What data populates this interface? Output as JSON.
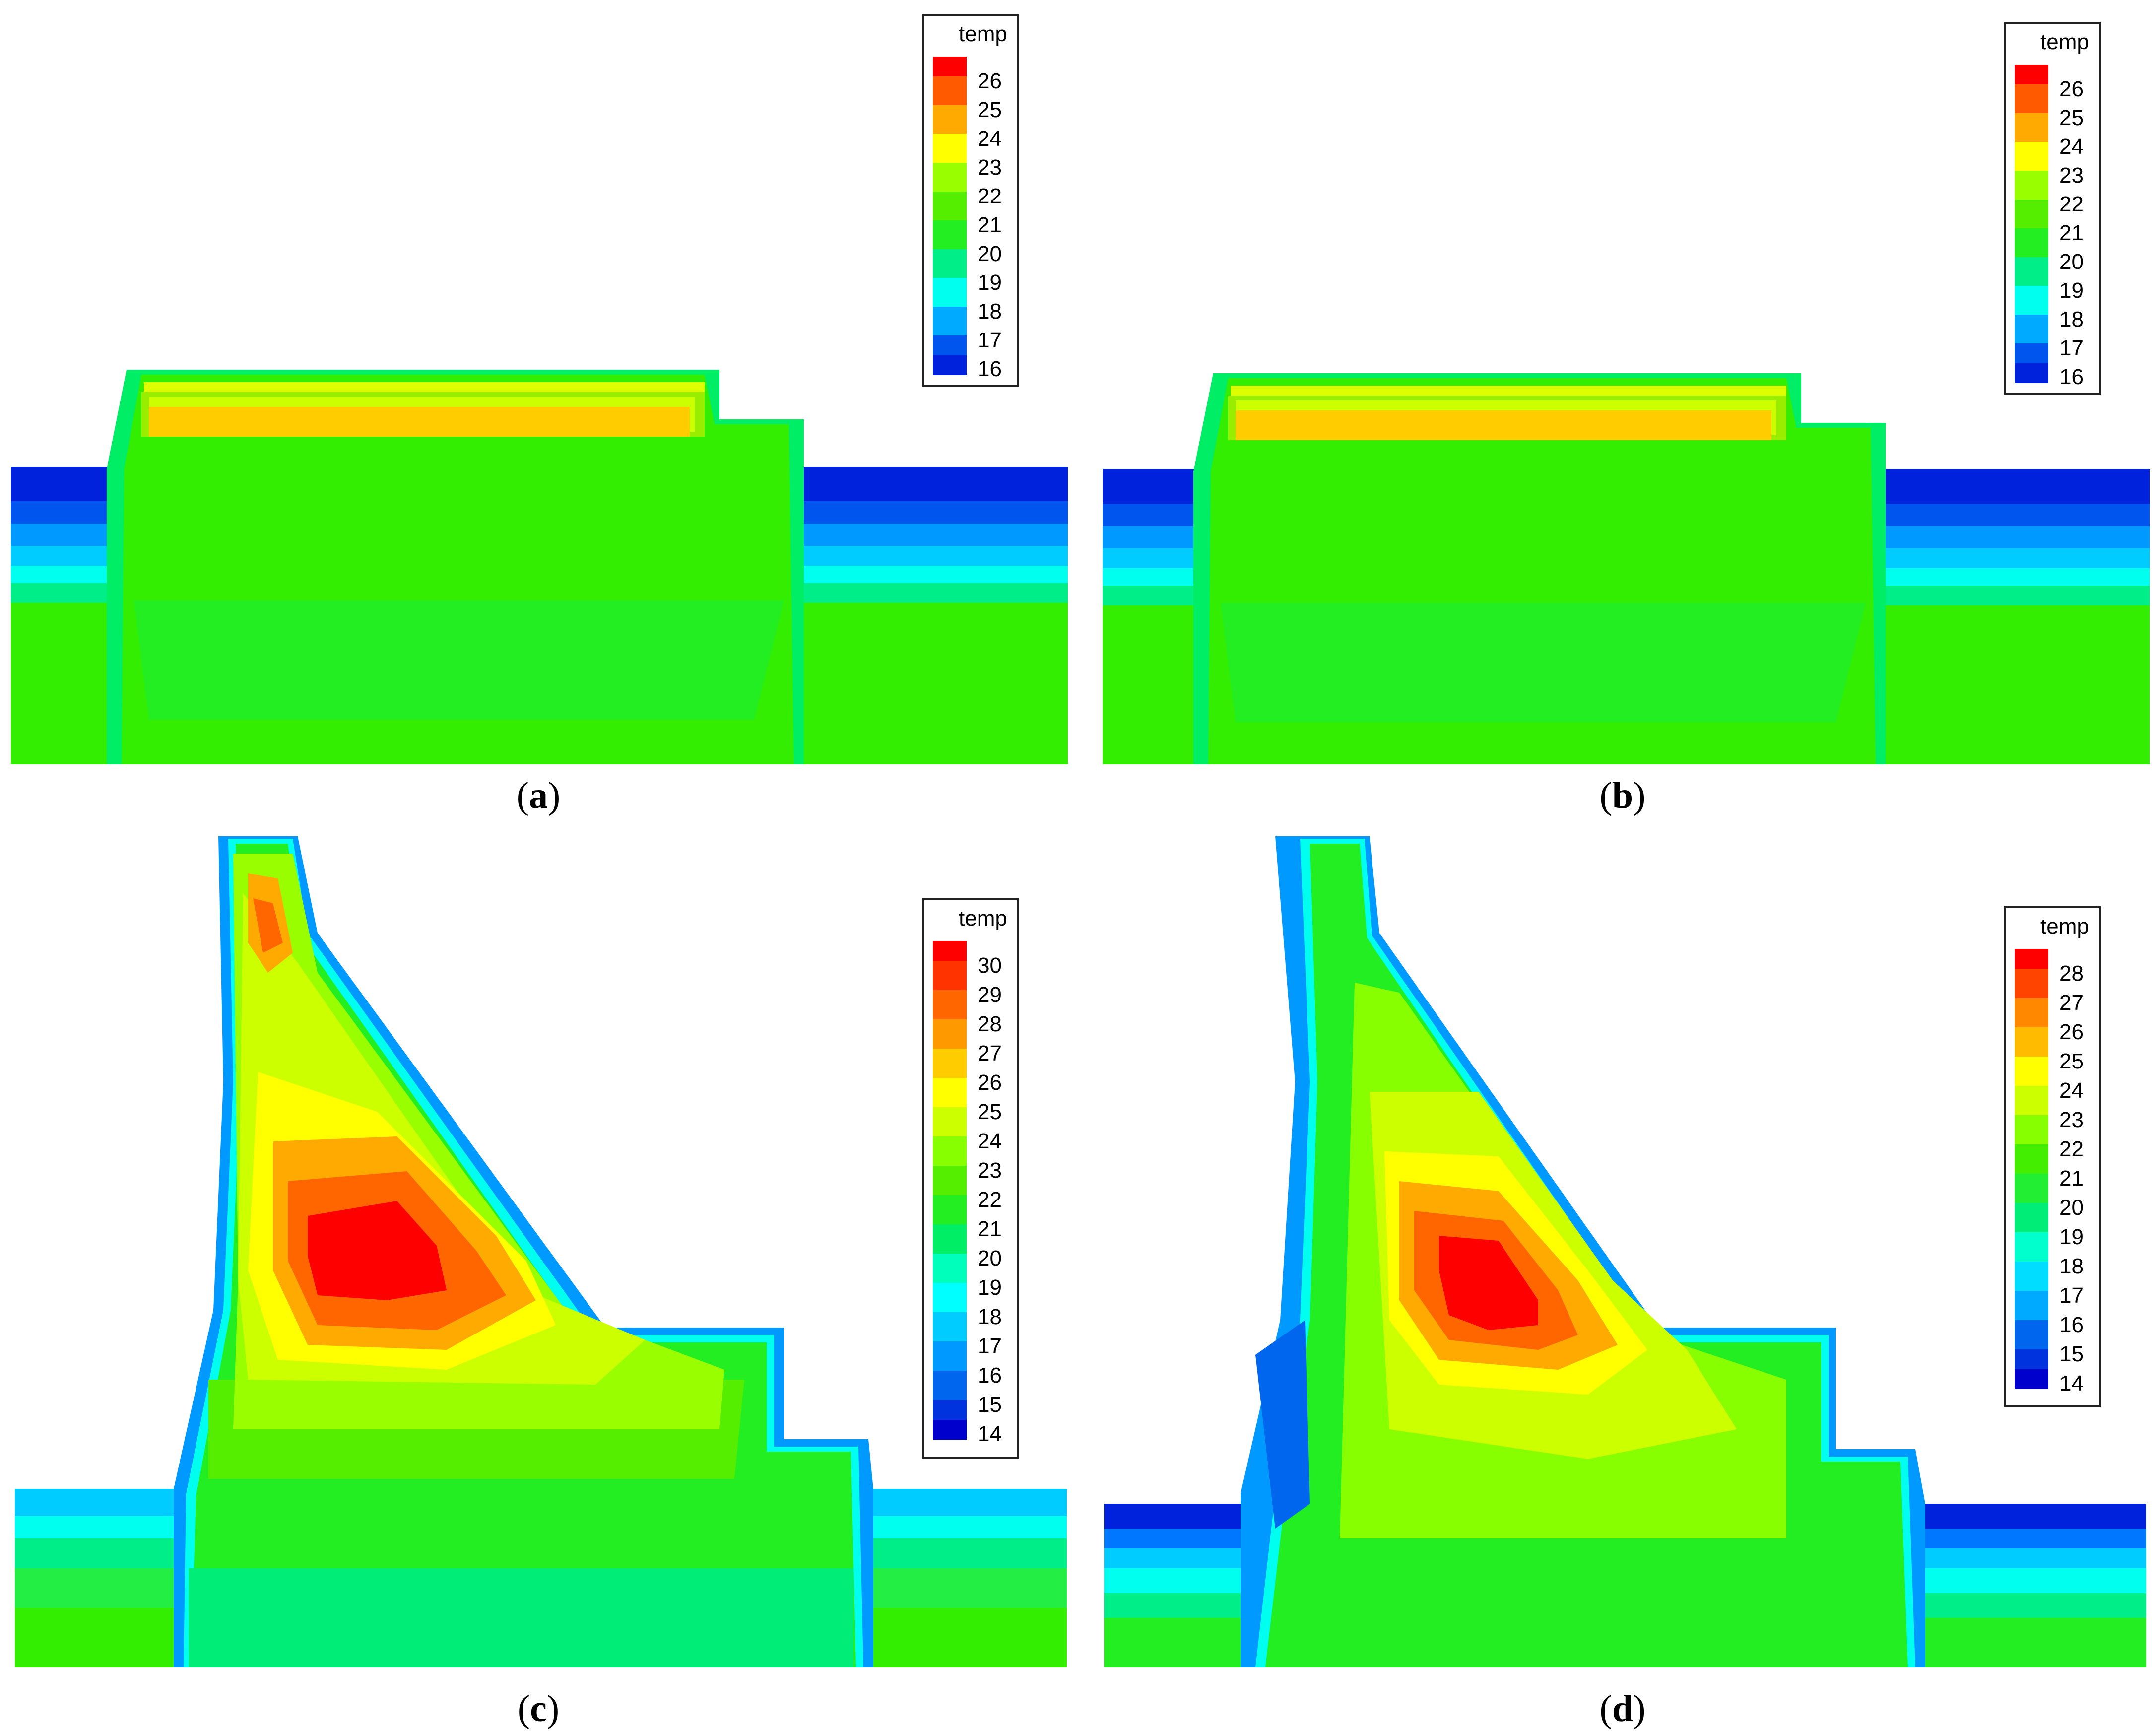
{
  "panels": [
    {
      "caption": "a",
      "legend_title": "temp",
      "levels": [
        26,
        25,
        24,
        23,
        22,
        21,
        20,
        19,
        18,
        17,
        16
      ]
    },
    {
      "caption": "b",
      "legend_title": "temp",
      "levels": [
        26,
        25,
        24,
        23,
        22,
        21,
        20,
        19,
        18,
        17,
        16
      ]
    },
    {
      "caption": "c",
      "legend_title": "temp",
      "levels": [
        30,
        29,
        28,
        27,
        26,
        25,
        24,
        23,
        22,
        21,
        20,
        19,
        18,
        17,
        16,
        15,
        14
      ]
    },
    {
      "caption": "d",
      "legend_title": "temp",
      "levels": [
        28,
        27,
        26,
        25,
        24,
        23,
        22,
        21,
        20,
        19,
        18,
        17,
        16,
        15,
        14
      ]
    }
  ],
  "colors": {
    "red": "#ff0000",
    "orange": "#ff7a00",
    "yellow": "#ffff00",
    "green": "#22ee00",
    "cyan": "#00ffff",
    "blue": "#0022dd"
  }
}
